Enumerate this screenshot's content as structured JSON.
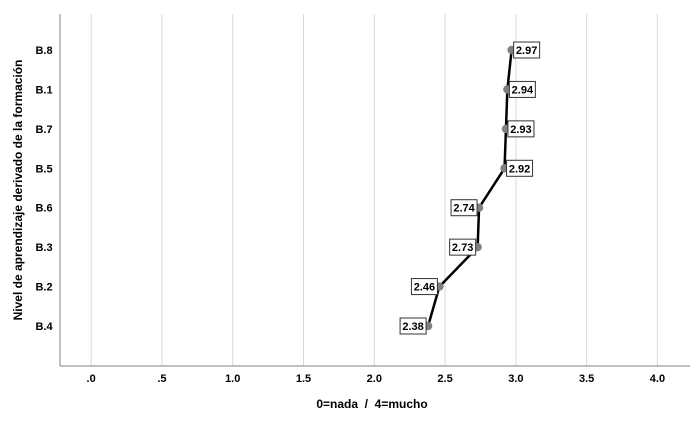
{
  "chart_data": {
    "type": "line",
    "title": "",
    "xlabel": "0=nada  /  4=mucho",
    "ylabel": "Nivel de aprendizaje derivado de la formación",
    "xlim": [
      -0.22,
      4.23
    ],
    "x_ticks": [
      0,
      0.5,
      1,
      1.5,
      2,
      2.5,
      3,
      3.5,
      4
    ],
    "x_tick_labels": [
      ".0",
      ".5",
      "1.0",
      "1.5",
      "2.0",
      "2.5",
      "3.0",
      "3.5",
      "4.0"
    ],
    "grid": "vertical",
    "categories": [
      "B.8",
      "B.1",
      "B.7",
      "B.5",
      "B.6",
      "B.3",
      "B.2",
      "B.4"
    ],
    "values": [
      2.97,
      2.94,
      2.93,
      2.92,
      2.74,
      2.73,
      2.46,
      2.38
    ],
    "data_labels": [
      "2.97",
      "2.94",
      "2.93",
      "2.92",
      "2.74",
      "2.73",
      "2.46",
      "2.38"
    ],
    "label_side": [
      "right",
      "right",
      "right",
      "right",
      "left",
      "left",
      "left",
      "left"
    ],
    "colors": {
      "line": "#000000",
      "marker": "#808080",
      "grid": "#d9d9d9",
      "axis": "#808080"
    }
  }
}
